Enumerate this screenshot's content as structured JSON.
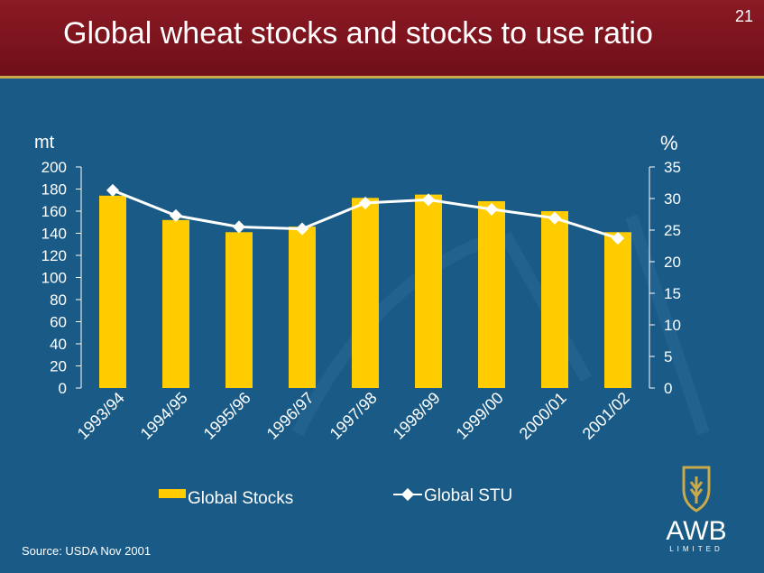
{
  "slide": {
    "title": "Global wheat stocks and stocks to use ratio",
    "number": "21",
    "source": "Source: USDA Nov 2001",
    "logo_text": "AWB",
    "logo_subtext": "LIMITED"
  },
  "colors": {
    "background": "#1a5a86",
    "header": "#7a121c",
    "bar": "#ffcc00",
    "line": "#ffffff"
  },
  "chart_data": {
    "type": "bar+line",
    "title": "Global wheat stocks and stocks to use ratio",
    "categories": [
      "1993/94",
      "1994/95",
      "1995/96",
      "1996/97",
      "1997/98",
      "1998/99",
      "1999/00",
      "2000/01",
      "2001/02"
    ],
    "series": [
      {
        "name": "Global Stocks",
        "type": "bar",
        "axis": "left",
        "values": [
          174,
          152,
          141,
          146,
          172,
          175,
          169,
          160,
          141
        ]
      },
      {
        "name": "Global STU",
        "type": "line",
        "axis": "right",
        "values": [
          31.3,
          27.3,
          25.5,
          25.2,
          29.3,
          29.8,
          28.3,
          26.9,
          23.7
        ]
      }
    ],
    "left_axis": {
      "label": "mt",
      "range": [
        0,
        200
      ],
      "ticks": [
        "0",
        "20",
        "40",
        "60",
        "80",
        "100",
        "120",
        "140",
        "160",
        "180",
        "200"
      ]
    },
    "right_axis": {
      "label": "%",
      "range": [
        0,
        35
      ],
      "ticks": [
        "0",
        "5",
        "10",
        "15",
        "20",
        "25",
        "30",
        "35"
      ]
    },
    "legend_position": "bottom"
  }
}
